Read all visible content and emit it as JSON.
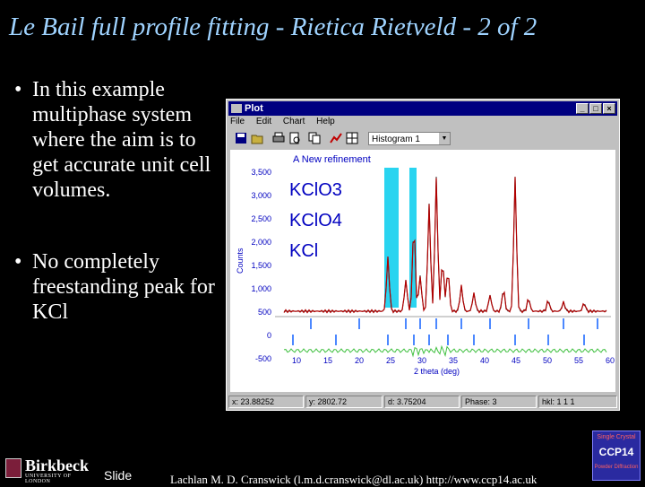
{
  "slide": {
    "title": "Le Bail full profile fitting - Rietica Rietveld - 2 of 2",
    "bullets": [
      "In this example multiphase system where the aim is to get accurate unit cell volumes.",
      "No completely freestanding peak for KCl"
    ],
    "bullet_glyph": "•",
    "footer": {
      "logo_name": "Birkbeck",
      "logo_sub": "UNIVERSITY OF LONDON",
      "slide_label": "Slide",
      "credit": "Lachlan M. D. Cranswick (l.m.d.cranswick@dl.ac.uk) http://www.ccp14.ac.uk",
      "badge_top": "Single Crystal",
      "badge_main": "CCP14",
      "badge_bottom": "Powder Diffraction"
    },
    "colors": {
      "title": "#9fd3ff",
      "background": "#000000"
    }
  },
  "window": {
    "title": "Plot",
    "buttons": {
      "minimize": "_",
      "maximize": "□",
      "close": "×"
    },
    "menu": [
      "File",
      "Edit",
      "Chart",
      "Help"
    ],
    "toolbar_icons": [
      "save-icon",
      "open-icon",
      "print-icon",
      "preview-icon",
      "copy-icon",
      "chart-icon",
      "grid-icon"
    ],
    "histogram_select": {
      "value": "Histogram 1",
      "arrow": "▼"
    },
    "status": {
      "x": "x: 23.88252",
      "y": "y: 2802.72",
      "d": "d: 3.75204",
      "phase": "Phase: 3",
      "hkl": "hkl: 1 1 1"
    }
  },
  "plot": {
    "refinement_label": "A New refinement",
    "phases": [
      "KClO3",
      "KClO4",
      "KCl"
    ],
    "ylabel": "Counts",
    "xlabel": "2 theta (deg)",
    "yticks": [
      "3,500",
      "3,000",
      "2,500",
      "2,000",
      "1,500",
      "1,000",
      "500",
      "0",
      "-500"
    ],
    "xticks": [
      "10",
      "15",
      "20",
      "25",
      "30",
      "35",
      "40",
      "45",
      "50",
      "55",
      "60"
    ],
    "colors": {
      "highlight": "#29d4f0",
      "observed": "#b00000",
      "calculated": "#303030",
      "difference": "#40c040",
      "reflections": "#1060ff",
      "phase_labels": "#0000c0"
    }
  }
}
